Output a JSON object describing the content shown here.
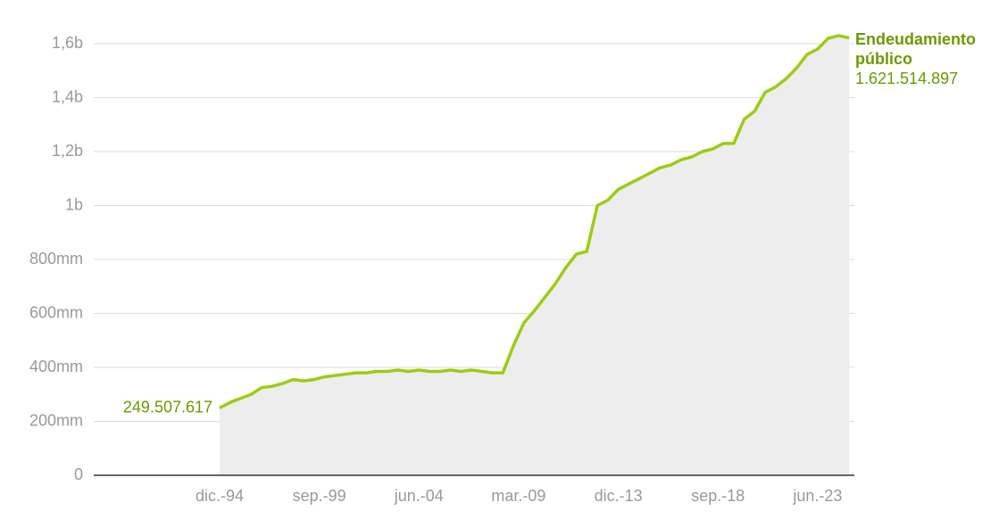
{
  "chart_data": {
    "type": "area",
    "x": [
      "1994-12",
      "1995-06",
      "1995-12",
      "1996-06",
      "1996-12",
      "1997-06",
      "1997-12",
      "1998-06",
      "1998-12",
      "1999-06",
      "1999-12",
      "2000-06",
      "2000-12",
      "2001-06",
      "2001-12",
      "2002-06",
      "2002-12",
      "2003-06",
      "2003-12",
      "2004-06",
      "2004-12",
      "2005-06",
      "2005-12",
      "2006-06",
      "2006-12",
      "2007-06",
      "2007-12",
      "2008-06",
      "2008-12",
      "2009-06",
      "2009-12",
      "2010-06",
      "2010-12",
      "2011-06",
      "2011-12",
      "2012-06",
      "2012-12",
      "2013-06",
      "2013-12",
      "2014-06",
      "2014-12",
      "2015-06",
      "2015-12",
      "2016-06",
      "2016-12",
      "2017-06",
      "2017-12",
      "2018-06",
      "2018-12",
      "2019-06",
      "2019-12",
      "2020-06",
      "2020-12",
      "2021-06",
      "2021-12",
      "2022-06",
      "2022-12",
      "2023-06",
      "2023-12",
      "2024-06",
      "2024-12"
    ],
    "series": [
      {
        "name": "Endeudamiento público",
        "color": "#9ccc14",
        "values": [
          249507617,
          270000000,
          285000000,
          300000000,
          325000000,
          330000000,
          340000000,
          355000000,
          350000000,
          355000000,
          365000000,
          370000000,
          375000000,
          380000000,
          380000000,
          385000000,
          385000000,
          390000000,
          385000000,
          390000000,
          385000000,
          385000000,
          390000000,
          385000000,
          390000000,
          385000000,
          380000000,
          380000000,
          480000000,
          565000000,
          610000000,
          660000000,
          710000000,
          770000000,
          820000000,
          830000000,
          1000000000,
          1020000000,
          1060000000,
          1080000000,
          1100000000,
          1120000000,
          1140000000,
          1150000000,
          1170000000,
          1180000000,
          1200000000,
          1210000000,
          1230000000,
          1230000000,
          1320000000,
          1350000000,
          1420000000,
          1440000000,
          1470000000,
          1510000000,
          1560000000,
          1580000000,
          1620000000,
          1630000000,
          1621514897
        ],
        "value_labels": [
          "249.507.617",
          null,
          null,
          null,
          null,
          null,
          null,
          null,
          null,
          null,
          null,
          null,
          null,
          null,
          null,
          null,
          null,
          null,
          null,
          null,
          null,
          null,
          null,
          null,
          null,
          null,
          null,
          null,
          null,
          null,
          null,
          null,
          null,
          null,
          null,
          null,
          null,
          null,
          null,
          null,
          null,
          null,
          null,
          null,
          null,
          null,
          null,
          null,
          null,
          null,
          null,
          null,
          null,
          null,
          null,
          null,
          null,
          null,
          null,
          null,
          "1.621.514.897"
        ]
      }
    ],
    "xlim": [
      "1988-12",
      "2025-03"
    ],
    "xticks": [
      {
        "value": "1994-12",
        "label": "dic.-94"
      },
      {
        "value": "1999-09",
        "label": "sep.-99"
      },
      {
        "value": "2004-06",
        "label": "jun.-04"
      },
      {
        "value": "2009-03",
        "label": "mar.-09"
      },
      {
        "value": "2013-12",
        "label": "dic.-13"
      },
      {
        "value": "2018-09",
        "label": "sep.-18"
      },
      {
        "value": "2023-06",
        "label": "jun.-23"
      }
    ],
    "ylim": [
      0,
      1600000000
    ],
    "yticks": [
      0,
      {
        "value": 200000000,
        "label": "200mm"
      },
      {
        "value": 400000000,
        "label": "400mm"
      },
      {
        "value": 600000000,
        "label": "600mm"
      },
      {
        "value": 800000000,
        "label": "800mm"
      },
      {
        "value": 1000000000,
        "label": "1b"
      },
      {
        "value": 1200000000,
        "label": "1,2b"
      },
      {
        "value": 1400000000,
        "label": "1,4b"
      },
      {
        "value": 1600000000,
        "label": "1,6b"
      }
    ],
    "grid": true,
    "area_color": "#ededed"
  }
}
